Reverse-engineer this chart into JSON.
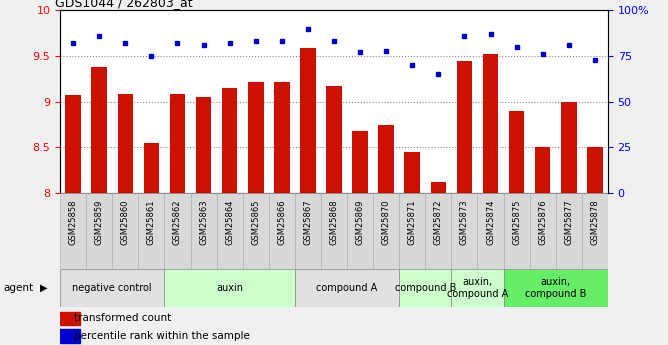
{
  "title": "GDS1044 / 262803_at",
  "samples": [
    "GSM25858",
    "GSM25859",
    "GSM25860",
    "GSM25861",
    "GSM25862",
    "GSM25863",
    "GSM25864",
    "GSM25865",
    "GSM25866",
    "GSM25867",
    "GSM25868",
    "GSM25869",
    "GSM25870",
    "GSM25871",
    "GSM25872",
    "GSM25873",
    "GSM25874",
    "GSM25875",
    "GSM25876",
    "GSM25877",
    "GSM25878"
  ],
  "bar_values": [
    9.07,
    9.38,
    9.08,
    8.55,
    9.08,
    9.05,
    9.15,
    9.22,
    9.22,
    9.59,
    9.17,
    8.68,
    8.75,
    8.45,
    8.12,
    9.45,
    9.52,
    8.9,
    8.5,
    9.0,
    8.5
  ],
  "dot_values": [
    82,
    86,
    82,
    75,
    82,
    81,
    82,
    83,
    83,
    90,
    83,
    77,
    78,
    70,
    65,
    86,
    87,
    80,
    76,
    81,
    73
  ],
  "bar_color": "#cc1100",
  "dot_color": "#0000cc",
  "ylim_left": [
    8.0,
    10.0
  ],
  "ylim_right": [
    0,
    100
  ],
  "yticks_left": [
    8.0,
    8.5,
    9.0,
    9.5,
    10.0
  ],
  "ytick_labels_left": [
    "8",
    "8.5",
    "9",
    "9.5",
    "10"
  ],
  "yticks_right": [
    0,
    25,
    50,
    75,
    100
  ],
  "ytick_labels_right": [
    "0",
    "25",
    "50",
    "75",
    "100%"
  ],
  "agent_groups": [
    {
      "label": "negative control",
      "start": 0,
      "end": 3,
      "color": "#e0e0e0"
    },
    {
      "label": "auxin",
      "start": 4,
      "end": 8,
      "color": "#ccffcc"
    },
    {
      "label": "compound A",
      "start": 9,
      "end": 12,
      "color": "#e0e0e0"
    },
    {
      "label": "compound B",
      "start": 13,
      "end": 14,
      "color": "#ccffcc"
    },
    {
      "label": "auxin,\ncompound A",
      "start": 15,
      "end": 16,
      "color": "#ccffcc"
    },
    {
      "label": "auxin,\ncompound B",
      "start": 17,
      "end": 20,
      "color": "#66ee66"
    }
  ],
  "agent_label": "agent",
  "legend_bar_label": "transformed count",
  "legend_dot_label": "percentile rank within the sample",
  "background_color": "#f0f0f0",
  "plot_bg_color": "#ffffff",
  "xtick_bg_color": "#d8d8d8"
}
